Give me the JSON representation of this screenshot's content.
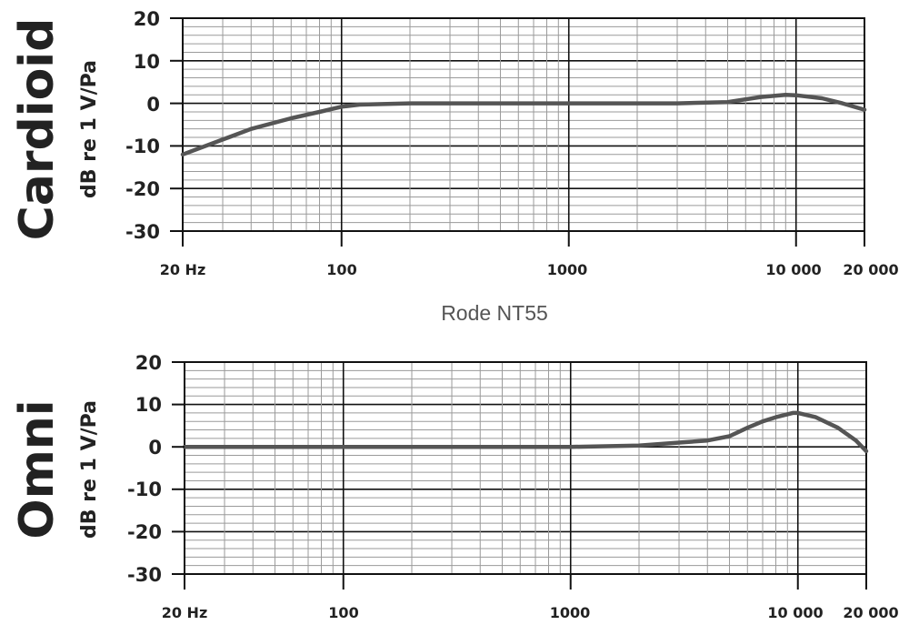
{
  "center_title": "Rode NT55",
  "colors": {
    "curve": "#555555",
    "grid_minor": "#9a9a9a",
    "grid_major": "#111111"
  },
  "chart_data": [
    {
      "type": "line",
      "mode_label": "Cardioid",
      "ylabel": "dB re 1 V/Pa",
      "xscale": "log",
      "xlim": [
        20,
        20000
      ],
      "ylim": [
        -30,
        20
      ],
      "yticks": [
        "20",
        "10",
        "0",
        "-10",
        "-20",
        "-30"
      ],
      "xtick_labels": [
        "20 Hz",
        "100",
        "1000",
        "10 000",
        "20 000"
      ],
      "grid": true,
      "series": [
        {
          "x": [
            20,
            30,
            40,
            60,
            80,
            100,
            120,
            200,
            500,
            1000,
            3000,
            5000,
            7000,
            9000,
            10000,
            13000,
            16000,
            20000
          ],
          "y": [
            -12,
            -8.5,
            -6,
            -3.5,
            -2,
            -0.8,
            -0.3,
            0,
            0,
            0,
            0,
            0.3,
            1.5,
            2,
            1.9,
            1.2,
            0,
            -1.5
          ]
        }
      ]
    },
    {
      "type": "line",
      "mode_label": "Omni",
      "ylabel": "dB re 1 V/Pa",
      "xscale": "log",
      "xlim": [
        20,
        20000
      ],
      "ylim": [
        -30,
        20
      ],
      "yticks": [
        "20",
        "10",
        "0",
        "-10",
        "-20",
        "-30"
      ],
      "xtick_labels": [
        "20 Hz",
        "100",
        "1000",
        "10 000",
        "20 000"
      ],
      "grid": true,
      "series": [
        {
          "x": [
            20,
            100,
            1000,
            2000,
            3000,
            4000,
            5000,
            6000,
            7000,
            8000,
            9500,
            10000,
            12000,
            15000,
            18000,
            20000
          ],
          "y": [
            0,
            0,
            0,
            0.3,
            1,
            1.5,
            2.5,
            4.5,
            6,
            7,
            8,
            8,
            7,
            4.5,
            1.5,
            -1
          ]
        }
      ]
    }
  ]
}
